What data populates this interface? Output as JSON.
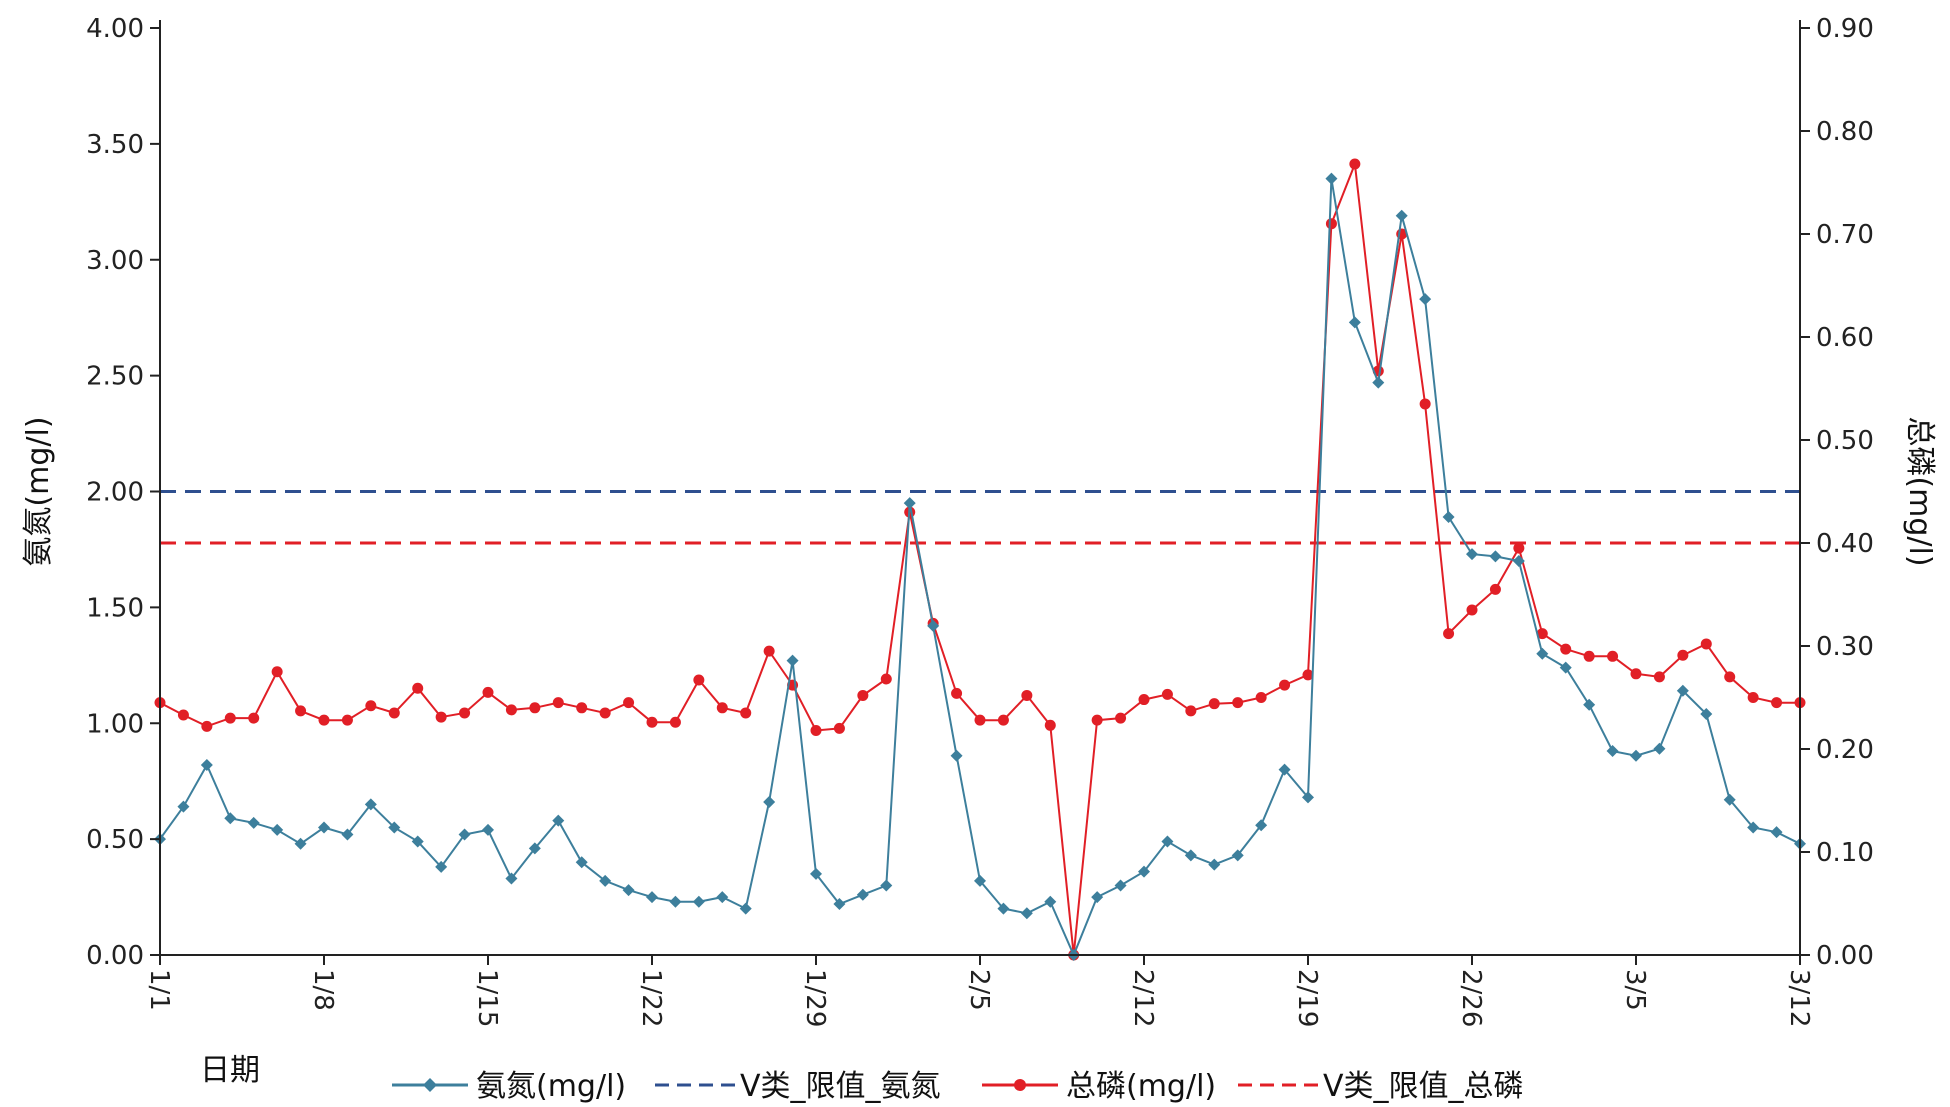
{
  "chart_data": {
    "type": "line",
    "xlabel": "日期",
    "ylabel": "氨氮(mg/l)",
    "y2label": "总磷(mg/l)",
    "x_ticks": [
      "1/1",
      "1/8",
      "1/15",
      "1/22",
      "1/29",
      "2/5",
      "2/12",
      "2/19",
      "2/26",
      "3/5",
      "3/12"
    ],
    "x_start": "1/1",
    "x_end": "3/12",
    "ylim": [
      0,
      4
    ],
    "y_ticks": [
      "0.00",
      "0.50",
      "1.00",
      "1.50",
      "2.00",
      "2.50",
      "3.00",
      "3.50",
      "4.00"
    ],
    "y2lim": [
      0,
      0.9
    ],
    "y2_ticks": [
      "0.00",
      "0.10",
      "0.20",
      "0.30",
      "0.40",
      "0.50",
      "0.60",
      "0.70",
      "0.80",
      "0.90"
    ],
    "grid": false,
    "legend_position": "bottom",
    "series": [
      {
        "name": "氨氮(mg/l)",
        "axis": "left",
        "color": "#3d7f9c",
        "marker": "diamond",
        "style": "solid",
        "values": [
          0.5,
          0.64,
          0.82,
          0.59,
          0.57,
          0.54,
          0.48,
          0.55,
          0.52,
          0.65,
          0.55,
          0.49,
          0.38,
          0.52,
          0.54,
          0.33,
          0.46,
          0.58,
          0.4,
          0.32,
          0.28,
          0.25,
          0.23,
          0.23,
          0.25,
          0.2,
          0.66,
          1.27,
          0.35,
          0.22,
          0.26,
          0.3,
          1.95,
          1.42,
          0.86,
          0.32,
          0.2,
          0.18,
          0.23,
          0.0,
          0.25,
          0.3,
          0.36,
          0.49,
          0.43,
          0.39,
          0.43,
          0.56,
          0.8,
          0.68,
          3.35,
          2.73,
          2.47,
          3.19,
          2.83,
          1.89,
          1.73,
          1.72,
          1.7,
          1.3,
          1.24,
          1.08,
          0.88,
          0.86,
          0.89,
          1.14,
          1.04,
          0.67,
          0.55,
          0.53,
          0.48
        ]
      },
      {
        "name": "V类_限值_氨氮",
        "axis": "left",
        "color": "#2e4f8f",
        "style": "dashed",
        "values": [
          2.0
        ]
      },
      {
        "name": "总磷(mg/l)",
        "axis": "right",
        "color": "#e11f26",
        "marker": "circle",
        "style": "solid",
        "values": [
          0.245,
          0.233,
          0.222,
          0.23,
          0.23,
          0.275,
          0.237,
          0.228,
          0.228,
          0.242,
          0.235,
          0.259,
          0.231,
          0.235,
          0.255,
          0.238,
          0.24,
          0.245,
          0.24,
          0.235,
          0.245,
          0.226,
          0.226,
          0.267,
          0.24,
          0.235,
          0.295,
          0.262,
          0.218,
          0.22,
          0.252,
          0.268,
          0.43,
          0.322,
          0.254,
          0.228,
          0.228,
          0.252,
          0.223,
          0.0,
          0.228,
          0.23,
          0.248,
          0.253,
          0.237,
          0.244,
          0.245,
          0.25,
          0.262,
          0.272,
          0.71,
          0.768,
          0.567,
          0.7,
          0.535,
          0.312,
          0.335,
          0.355,
          0.395,
          0.312,
          0.297,
          0.29,
          0.29,
          0.273,
          0.27,
          0.291,
          0.302,
          0.27,
          0.25,
          0.245,
          0.245
        ]
      },
      {
        "name": "V类_限值_总磷",
        "axis": "right",
        "color": "#e11f26",
        "style": "dashed",
        "values": [
          0.4
        ]
      }
    ]
  }
}
